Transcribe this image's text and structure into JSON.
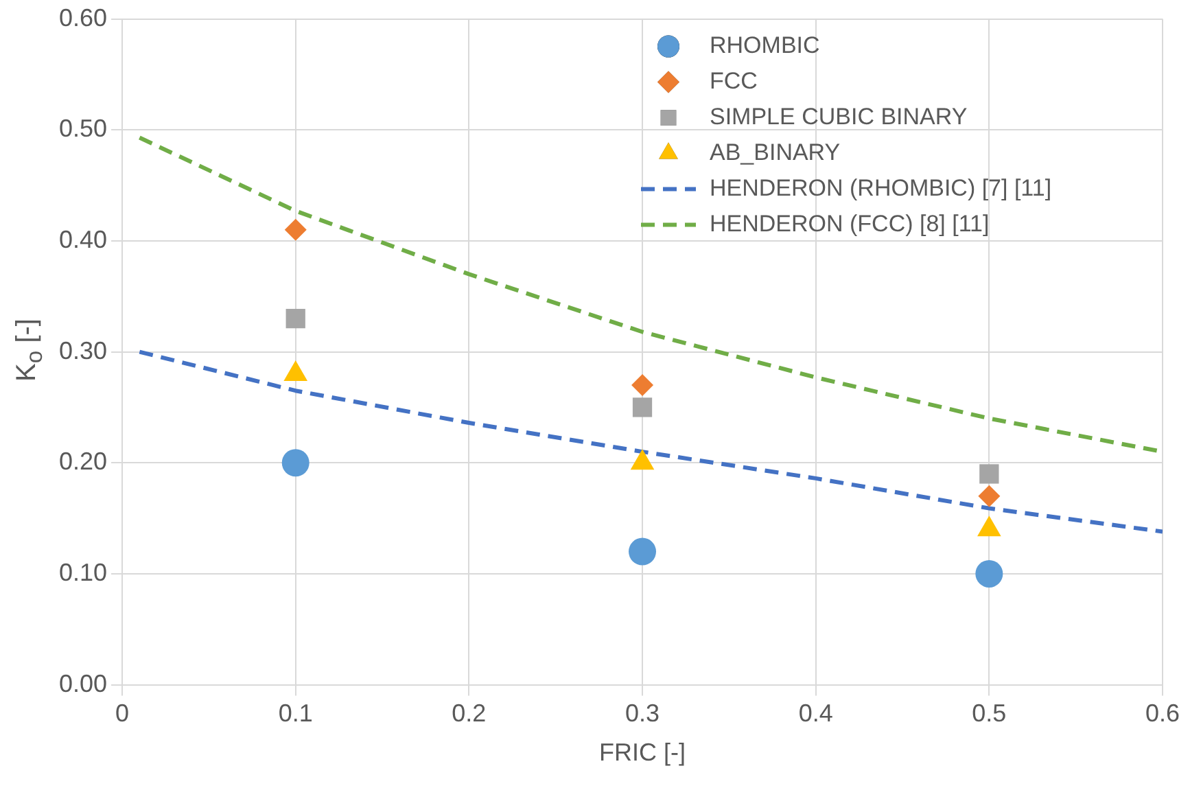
{
  "chart_data": {
    "type": "scatter",
    "xlabel": "FRIC [-]",
    "ylabel": "K$_{o}$ [-]",
    "xlim": [
      0,
      0.6
    ],
    "xticks": [
      0,
      0.1,
      0.2,
      0.3,
      0.4,
      0.5,
      0.6
    ],
    "ylim": [
      0,
      0.6
    ],
    "yticks": [
      {
        "value": 0,
        "label": "0.00"
      },
      {
        "value": 0.1,
        "label": "0.10"
      },
      {
        "value": 0.2,
        "label": "0.20"
      },
      {
        "value": 0.3,
        "label": "0.30"
      },
      {
        "value": 0.4,
        "label": "0.40"
      },
      {
        "value": 0.5,
        "label": "0.50"
      },
      {
        "value": 0.6,
        "label": "0.60"
      }
    ],
    "grid": true,
    "legend": "top right",
    "series": [
      {
        "name": "RHOMBIC",
        "type": "scatter",
        "marker": "circle",
        "color": "#5b9bd5",
        "x": [
          0.1,
          0.3,
          0.5
        ],
        "values": [
          0.2,
          0.12,
          0.1
        ]
      },
      {
        "name": "FCC",
        "type": "scatter",
        "marker": "diamond",
        "color": "#ed7d31",
        "x": [
          0.1,
          0.3,
          0.5
        ],
        "values": [
          0.41,
          0.27,
          0.17
        ]
      },
      {
        "name": "SIMPLE CUBIC BINARY",
        "type": "scatter",
        "marker": "square",
        "color": "#a5a5a5",
        "x": [
          0.1,
          0.3,
          0.5
        ],
        "values": [
          0.33,
          0.25,
          0.19
        ]
      },
      {
        "name": "AB_BINARY",
        "type": "scatter",
        "marker": "triangle",
        "color": "#ffc000",
        "x": [
          0.1,
          0.3,
          0.5
        ],
        "values": [
          0.28,
          0.2,
          0.14
        ]
      },
      {
        "name": "HENDERON (RHOMBIC) [7] [11]",
        "type": "line",
        "marker": "none",
        "line_style": "dashed",
        "color": "#4472c4",
        "x": [
          0.01,
          0.1,
          0.2,
          0.3,
          0.4,
          0.5,
          0.6
        ],
        "values": [
          0.3,
          0.265,
          0.236,
          0.21,
          0.186,
          0.159,
          0.138
        ]
      },
      {
        "name": "HENDERON (FCC) [8] [11]",
        "type": "line",
        "marker": "none",
        "line_style": "dashed",
        "color": "#70ad47",
        "x": [
          0.01,
          0.1,
          0.2,
          0.3,
          0.4,
          0.5,
          0.6
        ],
        "values": [
          0.493,
          0.427,
          0.37,
          0.318,
          0.277,
          0.24,
          0.21
        ]
      }
    ]
  }
}
